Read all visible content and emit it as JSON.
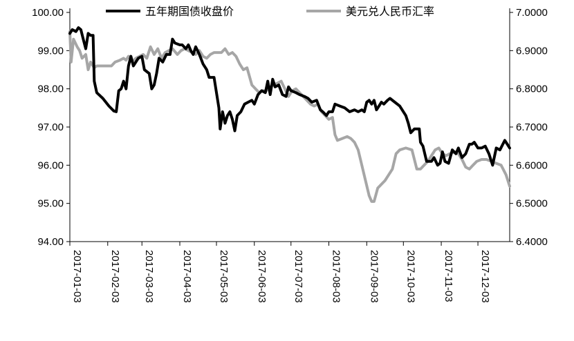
{
  "chart_data": {
    "type": "line",
    "title": "",
    "legend_position": "top",
    "grid": false,
    "x_tick_labels": [
      "2017-01-03",
      "2017-02-03",
      "2017-03-03",
      "2017-04-03",
      "2017-05-03",
      "2017-06-03",
      "2017-07-03",
      "2017-08-03",
      "2017-09-03",
      "2017-10-03",
      "2017-11-03",
      "2017-12-03"
    ],
    "x_range": [
      "2017-01-03",
      "2017-12-29"
    ],
    "y_left": {
      "ylim": [
        94,
        100
      ],
      "ticks": [
        "94.00",
        "95.00",
        "96.00",
        "97.00",
        "98.00",
        "99.00",
        "100.00"
      ]
    },
    "y_right": {
      "ylim": [
        6.4,
        7.0
      ],
      "ticks": [
        "6.4000",
        "6.5000",
        "6.6000",
        "6.7000",
        "6.8000",
        "6.9000",
        "7.0000"
      ]
    },
    "series": [
      {
        "name": "五年期国债收盘价",
        "axis": "left",
        "color": "#000000",
        "points": [
          [
            "2017-01-03",
            99.45
          ],
          [
            "2017-01-05",
            99.55
          ],
          [
            "2017-01-08",
            99.5
          ],
          [
            "2017-01-10",
            99.6
          ],
          [
            "2017-01-12",
            99.55
          ],
          [
            "2017-01-14",
            99.3
          ],
          [
            "2017-01-16",
            99.05
          ],
          [
            "2017-01-18",
            99.45
          ],
          [
            "2017-01-20",
            99.4
          ],
          [
            "2017-01-22",
            99.4
          ],
          [
            "2017-01-23",
            98.2
          ],
          [
            "2017-01-25",
            97.9
          ],
          [
            "2017-01-30",
            97.75
          ],
          [
            "2017-02-04",
            97.55
          ],
          [
            "2017-02-08",
            97.42
          ],
          [
            "2017-02-10",
            97.4
          ],
          [
            "2017-02-12",
            97.95
          ],
          [
            "2017-02-14",
            98.0
          ],
          [
            "2017-02-16",
            98.2
          ],
          [
            "2017-02-18",
            98.0
          ],
          [
            "2017-02-20",
            98.6
          ],
          [
            "2017-02-22",
            98.85
          ],
          [
            "2017-02-24",
            98.6
          ],
          [
            "2017-02-26",
            98.7
          ],
          [
            "2017-02-28",
            98.8
          ],
          [
            "2017-03-03",
            98.85
          ],
          [
            "2017-03-05",
            98.5
          ],
          [
            "2017-03-09",
            98.4
          ],
          [
            "2017-03-11",
            98.0
          ],
          [
            "2017-03-13",
            98.1
          ],
          [
            "2017-03-15",
            98.4
          ],
          [
            "2017-03-17",
            98.8
          ],
          [
            "2017-03-20",
            98.7
          ],
          [
            "2017-03-23",
            98.9
          ],
          [
            "2017-03-26",
            98.9
          ],
          [
            "2017-03-28",
            99.3
          ],
          [
            "2017-03-30",
            99.2
          ],
          [
            "2017-04-03",
            99.15
          ],
          [
            "2017-04-05",
            99.15
          ],
          [
            "2017-04-08",
            99.05
          ],
          [
            "2017-04-10",
            99.15
          ],
          [
            "2017-04-12",
            99.0
          ],
          [
            "2017-04-14",
            98.9
          ],
          [
            "2017-04-16",
            99.1
          ],
          [
            "2017-04-19",
            98.9
          ],
          [
            "2017-04-22",
            98.65
          ],
          [
            "2017-04-25",
            98.5
          ],
          [
            "2017-04-27",
            98.3
          ],
          [
            "2017-04-29",
            98.3
          ],
          [
            "2017-05-01",
            98.3
          ],
          [
            "2017-05-03",
            97.9
          ],
          [
            "2017-05-05",
            97.5
          ],
          [
            "2017-05-06",
            96.95
          ],
          [
            "2017-05-08",
            97.4
          ],
          [
            "2017-05-10",
            97.1
          ],
          [
            "2017-05-12",
            97.3
          ],
          [
            "2017-05-14",
            97.4
          ],
          [
            "2017-05-16",
            97.2
          ],
          [
            "2017-05-18",
            96.9
          ],
          [
            "2017-05-20",
            97.3
          ],
          [
            "2017-05-23",
            97.4
          ],
          [
            "2017-05-26",
            97.6
          ],
          [
            "2017-05-29",
            97.65
          ],
          [
            "2017-06-01",
            97.7
          ],
          [
            "2017-06-03",
            97.6
          ],
          [
            "2017-06-06",
            97.85
          ],
          [
            "2017-06-09",
            97.95
          ],
          [
            "2017-06-12",
            97.9
          ],
          [
            "2017-06-14",
            98.2
          ],
          [
            "2017-06-16",
            97.85
          ],
          [
            "2017-06-18",
            98.25
          ],
          [
            "2017-06-20",
            98.05
          ],
          [
            "2017-06-23",
            98.1
          ],
          [
            "2017-06-26",
            97.85
          ],
          [
            "2017-06-29",
            97.8
          ],
          [
            "2017-07-01",
            98.05
          ],
          [
            "2017-07-03",
            97.95
          ],
          [
            "2017-07-07",
            97.9
          ],
          [
            "2017-07-10",
            97.85
          ],
          [
            "2017-07-14",
            97.8
          ],
          [
            "2017-07-17",
            97.75
          ],
          [
            "2017-07-20",
            97.65
          ],
          [
            "2017-07-24",
            97.7
          ],
          [
            "2017-07-27",
            97.45
          ],
          [
            "2017-07-29",
            97.4
          ],
          [
            "2017-08-01",
            97.3
          ],
          [
            "2017-08-03",
            97.4
          ],
          [
            "2017-08-06",
            97.4
          ],
          [
            "2017-08-08",
            97.6
          ],
          [
            "2017-08-12",
            97.55
          ],
          [
            "2017-08-16",
            97.5
          ],
          [
            "2017-08-20",
            97.4
          ],
          [
            "2017-08-24",
            97.45
          ],
          [
            "2017-08-27",
            97.4
          ],
          [
            "2017-08-30",
            97.45
          ],
          [
            "2017-09-01",
            97.4
          ],
          [
            "2017-09-03",
            97.65
          ],
          [
            "2017-09-05",
            97.7
          ],
          [
            "2017-09-07",
            97.6
          ],
          [
            "2017-09-09",
            97.7
          ],
          [
            "2017-09-11",
            97.45
          ],
          [
            "2017-09-13",
            97.55
          ],
          [
            "2017-09-15",
            97.65
          ],
          [
            "2017-09-17",
            97.6
          ],
          [
            "2017-09-20",
            97.7
          ],
          [
            "2017-09-22",
            97.75
          ],
          [
            "2017-09-26",
            97.65
          ],
          [
            "2017-09-30",
            97.55
          ],
          [
            "2017-10-05",
            97.3
          ],
          [
            "2017-10-07",
            97.1
          ],
          [
            "2017-10-09",
            96.85
          ],
          [
            "2017-10-12",
            96.95
          ],
          [
            "2017-10-16",
            96.95
          ],
          [
            "2017-10-17",
            96.6
          ],
          [
            "2017-10-19",
            96.5
          ],
          [
            "2017-10-22",
            96.1
          ],
          [
            "2017-10-26",
            96.1
          ],
          [
            "2017-10-28",
            96.2
          ],
          [
            "2017-10-31",
            96.0
          ],
          [
            "2017-11-02",
            96.05
          ],
          [
            "2017-11-04",
            96.35
          ],
          [
            "2017-11-06",
            96.1
          ],
          [
            "2017-11-09",
            96.05
          ],
          [
            "2017-11-12",
            96.4
          ],
          [
            "2017-11-15",
            96.3
          ],
          [
            "2017-11-17",
            96.45
          ],
          [
            "2017-11-20",
            96.2
          ],
          [
            "2017-11-23",
            96.3
          ],
          [
            "2017-11-26",
            96.55
          ],
          [
            "2017-11-28",
            96.55
          ],
          [
            "2017-11-30",
            96.6
          ],
          [
            "2017-12-03",
            96.45
          ],
          [
            "2017-12-06",
            96.45
          ],
          [
            "2017-12-09",
            96.5
          ],
          [
            "2017-12-12",
            96.3
          ],
          [
            "2017-12-15",
            96.0
          ],
          [
            "2017-12-18",
            96.45
          ],
          [
            "2017-12-21",
            96.4
          ],
          [
            "2017-12-25",
            96.65
          ],
          [
            "2017-12-27",
            96.55
          ],
          [
            "2017-12-29",
            96.45
          ]
        ]
      },
      {
        "name": "美元兑人民币汇率",
        "axis": "right",
        "color": "#a6a6a6",
        "points": [
          [
            "2017-01-03",
            6.95
          ],
          [
            "2017-01-04",
            6.87
          ],
          [
            "2017-01-06",
            6.93
          ],
          [
            "2017-01-09",
            6.91
          ],
          [
            "2017-01-11",
            6.9
          ],
          [
            "2017-01-13",
            6.88
          ],
          [
            "2017-01-16",
            6.89
          ],
          [
            "2017-01-18",
            6.85
          ],
          [
            "2017-01-20",
            6.87
          ],
          [
            "2017-01-23",
            6.855
          ],
          [
            "2017-01-25",
            6.86
          ],
          [
            "2017-02-01",
            6.86
          ],
          [
            "2017-02-06",
            6.86
          ],
          [
            "2017-02-09",
            6.87
          ],
          [
            "2017-02-13",
            6.875
          ],
          [
            "2017-02-16",
            6.88
          ],
          [
            "2017-02-18",
            6.875
          ],
          [
            "2017-02-20",
            6.885
          ],
          [
            "2017-02-23",
            6.87
          ],
          [
            "2017-02-26",
            6.88
          ],
          [
            "2017-03-01",
            6.885
          ],
          [
            "2017-03-04",
            6.89
          ],
          [
            "2017-03-07",
            6.88
          ],
          [
            "2017-03-10",
            6.91
          ],
          [
            "2017-03-13",
            6.89
          ],
          [
            "2017-03-16",
            6.905
          ],
          [
            "2017-03-19",
            6.88
          ],
          [
            "2017-03-22",
            6.895
          ],
          [
            "2017-03-25",
            6.9
          ],
          [
            "2017-03-28",
            6.905
          ],
          [
            "2017-04-01",
            6.89
          ],
          [
            "2017-04-04",
            6.9
          ],
          [
            "2017-04-07",
            6.905
          ],
          [
            "2017-04-10",
            6.9
          ],
          [
            "2017-04-13",
            6.895
          ],
          [
            "2017-04-16",
            6.89
          ],
          [
            "2017-04-19",
            6.9
          ],
          [
            "2017-04-22",
            6.885
          ],
          [
            "2017-04-25",
            6.88
          ],
          [
            "2017-04-28",
            6.89
          ],
          [
            "2017-05-01",
            6.895
          ],
          [
            "2017-05-04",
            6.895
          ],
          [
            "2017-05-07",
            6.895
          ],
          [
            "2017-05-10",
            6.905
          ],
          [
            "2017-05-13",
            6.89
          ],
          [
            "2017-05-16",
            6.895
          ],
          [
            "2017-05-19",
            6.885
          ],
          [
            "2017-05-22",
            6.865
          ],
          [
            "2017-05-25",
            6.85
          ],
          [
            "2017-05-28",
            6.855
          ],
          [
            "2017-06-01",
            6.81
          ],
          [
            "2017-06-04",
            6.8
          ],
          [
            "2017-06-07",
            6.79
          ],
          [
            "2017-06-10",
            6.795
          ],
          [
            "2017-06-13",
            6.795
          ],
          [
            "2017-06-16",
            6.805
          ],
          [
            "2017-06-19",
            6.81
          ],
          [
            "2017-06-22",
            6.815
          ],
          [
            "2017-06-25",
            6.82
          ],
          [
            "2017-06-28",
            6.8
          ],
          [
            "2017-07-01",
            6.78
          ],
          [
            "2017-07-04",
            6.795
          ],
          [
            "2017-07-07",
            6.8
          ],
          [
            "2017-07-10",
            6.79
          ],
          [
            "2017-07-13",
            6.78
          ],
          [
            "2017-07-16",
            6.77
          ],
          [
            "2017-07-19",
            6.76
          ],
          [
            "2017-07-22",
            6.755
          ],
          [
            "2017-07-25",
            6.76
          ],
          [
            "2017-07-28",
            6.74
          ],
          [
            "2017-07-31",
            6.73
          ],
          [
            "2017-08-03",
            6.72
          ],
          [
            "2017-08-06",
            6.725
          ],
          [
            "2017-08-08",
            6.68
          ],
          [
            "2017-08-10",
            6.665
          ],
          [
            "2017-08-14",
            6.67
          ],
          [
            "2017-08-18",
            6.675
          ],
          [
            "2017-08-21",
            6.67
          ],
          [
            "2017-08-24",
            6.66
          ],
          [
            "2017-08-27",
            6.64
          ],
          [
            "2017-08-30",
            6.6
          ],
          [
            "2017-09-02",
            6.56
          ],
          [
            "2017-09-05",
            6.52
          ],
          [
            "2017-09-07",
            6.505
          ],
          [
            "2017-09-09",
            6.505
          ],
          [
            "2017-09-12",
            6.54
          ],
          [
            "2017-09-15",
            6.55
          ],
          [
            "2017-09-18",
            6.56
          ],
          [
            "2017-09-21",
            6.575
          ],
          [
            "2017-09-24",
            6.59
          ],
          [
            "2017-09-27",
            6.63
          ],
          [
            "2017-09-30",
            6.64
          ],
          [
            "2017-10-05",
            6.645
          ],
          [
            "2017-10-10",
            6.64
          ],
          [
            "2017-10-14",
            6.59
          ],
          [
            "2017-10-17",
            6.59
          ],
          [
            "2017-10-20",
            6.6
          ],
          [
            "2017-10-23",
            6.61
          ],
          [
            "2017-10-26",
            6.625
          ],
          [
            "2017-10-29",
            6.64
          ],
          [
            "2017-11-01",
            6.645
          ],
          [
            "2017-11-04",
            6.63
          ],
          [
            "2017-11-07",
            6.625
          ],
          [
            "2017-11-10",
            6.63
          ],
          [
            "2017-11-14",
            6.635
          ],
          [
            "2017-11-17",
            6.63
          ],
          [
            "2017-11-20",
            6.615
          ],
          [
            "2017-11-23",
            6.595
          ],
          [
            "2017-11-26",
            6.59
          ],
          [
            "2017-11-29",
            6.6
          ],
          [
            "2017-12-02",
            6.61
          ],
          [
            "2017-12-06",
            6.615
          ],
          [
            "2017-12-10",
            6.615
          ],
          [
            "2017-12-14",
            6.61
          ],
          [
            "2017-12-18",
            6.605
          ],
          [
            "2017-12-22",
            6.6
          ],
          [
            "2017-12-26",
            6.575
          ],
          [
            "2017-12-29",
            6.545
          ]
        ]
      }
    ]
  }
}
